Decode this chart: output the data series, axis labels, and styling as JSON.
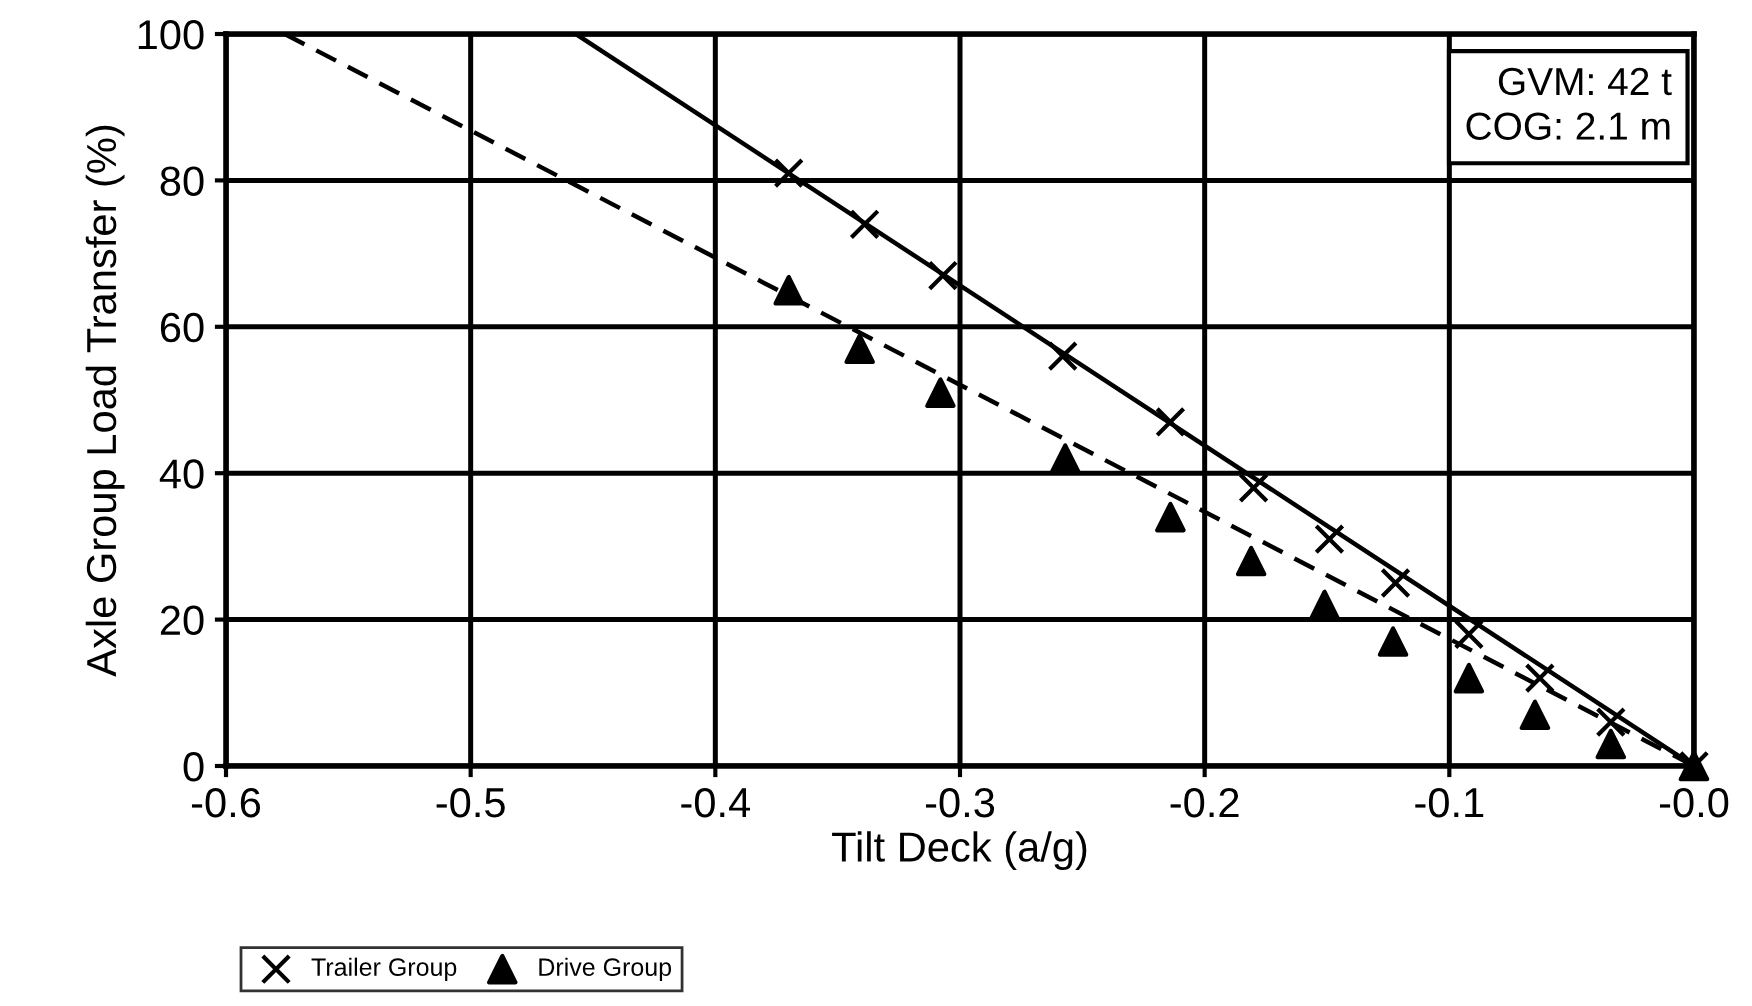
{
  "chart_data": {
    "type": "scatter",
    "xlabel": "Tilt Deck (a/g)",
    "ylabel": "Axle Group Load Transfer (%)",
    "series": [
      {
        "name": "Trailer Group",
        "marker": "cross",
        "color": "#000000",
        "x": [
          -0.37,
          -0.339,
          -0.307,
          -0.258,
          -0.214,
          -0.18,
          -0.149,
          -0.122,
          -0.092,
          -0.063,
          -0.034,
          0.0
        ],
        "values": [
          81,
          74,
          67,
          56,
          47,
          38,
          31,
          25,
          18,
          12,
          6,
          0
        ]
      },
      {
        "name": "Drive Group",
        "marker": "triangle",
        "color": "#000000",
        "x": [
          -0.37,
          -0.341,
          -0.308,
          -0.257,
          -0.214,
          -0.181,
          -0.151,
          -0.123,
          -0.092,
          -0.065,
          -0.034,
          0.0
        ],
        "values": [
          65,
          57,
          51,
          42,
          34,
          28,
          22,
          17,
          12,
          7,
          3,
          0
        ]
      },
      {
        "type": "line",
        "line_style": "solid",
        "color": "#000000",
        "x": [
          -0.457,
          0.0
        ],
        "values": [
          100,
          0
        ]
      },
      {
        "type": "line",
        "line_style": "dashed",
        "color": "#000000",
        "x": [
          -0.576,
          0.0
        ],
        "values": [
          100,
          0
        ]
      }
    ],
    "xlim": [
      -0.6,
      0.0
    ],
    "xticks": [
      -0.6,
      -0.5,
      -0.4,
      -0.3,
      -0.2,
      -0.1,
      {
        "value": 0.0,
        "label": "-0.0"
      }
    ],
    "ylim": [
      0,
      100
    ],
    "yticks": [
      0,
      20,
      40,
      60,
      80,
      100
    ],
    "grid": true,
    "legend": "bottom left",
    "annotations": [
      "GVM: 42 t\nCOG: 2.1 m"
    ]
  }
}
